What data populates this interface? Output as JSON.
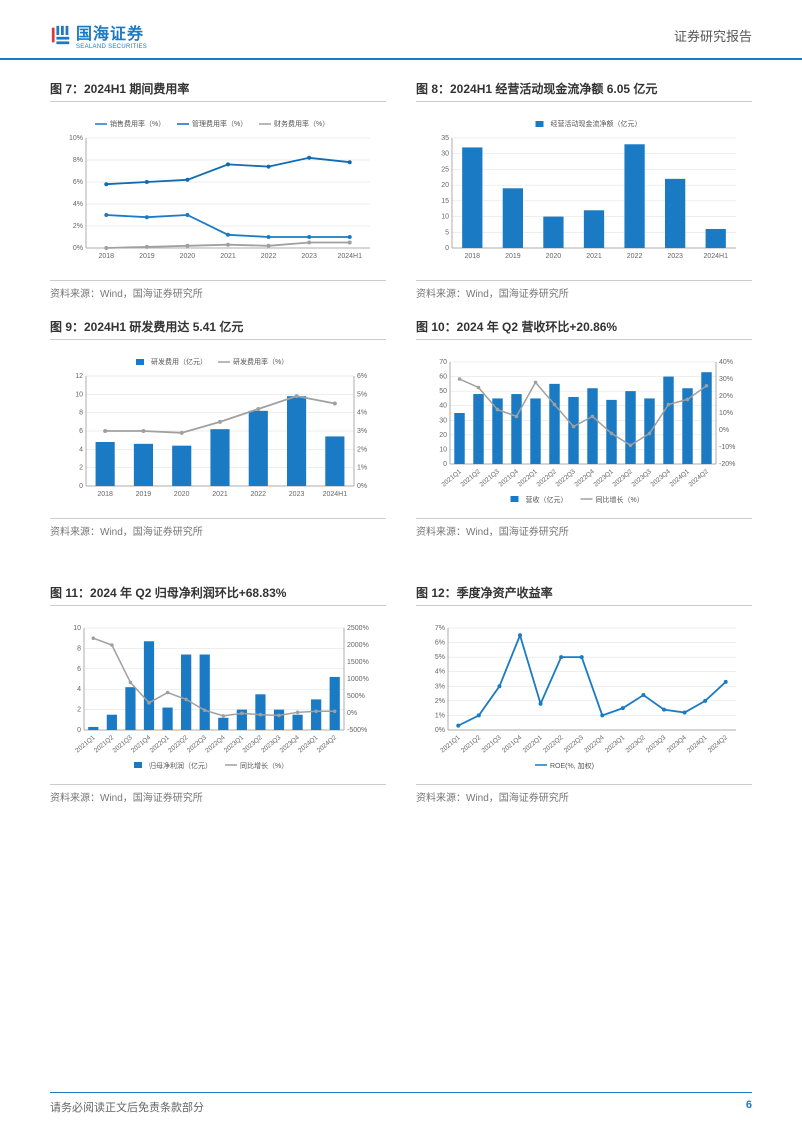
{
  "header": {
    "logo_cn": "国海证券",
    "logo_en": "SEALAND SECURITIES",
    "report_type": "证券研究报告"
  },
  "footer": {
    "disclaimer": "请务必阅读正文后免责条款部分",
    "page": "6"
  },
  "source_text": "资料来源：Wind，国海证券研究所",
  "colors": {
    "primary_blue": "#1a7bc4",
    "mid_blue": "#0d6cb5",
    "grey_line": "#a0a0a0",
    "grid": "#e0e0e0",
    "axis": "#999999",
    "text": "#666666",
    "bg": "#ffffff"
  },
  "chart7": {
    "title": "图 7：2024H1 期间费用率",
    "type": "line",
    "categories": [
      "2018",
      "2019",
      "2020",
      "2021",
      "2022",
      "2023",
      "2024H1"
    ],
    "series": [
      {
        "name": "销售费用率（%）",
        "color": "#1a7bc4",
        "values": [
          3.0,
          2.8,
          3.0,
          1.2,
          1.0,
          1.0,
          1.0
        ]
      },
      {
        "name": "管理费用率（%）",
        "color": "#0d6cb5",
        "values": [
          5.8,
          6.0,
          6.2,
          7.6,
          7.4,
          8.2,
          7.8
        ]
      },
      {
        "name": "财务费用率（%）",
        "color": "#a0a0a0",
        "values": [
          0.0,
          0.1,
          0.2,
          0.3,
          0.2,
          0.5,
          0.5
        ]
      }
    ],
    "ylim": [
      0,
      10
    ],
    "ytick_step": 2,
    "y_suffix": "%"
  },
  "chart8": {
    "title": "图 8：2024H1 经营活动现金流净额 6.05 亿元",
    "type": "bar",
    "legend": "经营活动现金流净额（亿元）",
    "categories": [
      "2018",
      "2019",
      "2020",
      "2021",
      "2022",
      "2023",
      "2024H1"
    ],
    "values": [
      32,
      19,
      10,
      12,
      33,
      22,
      6.05
    ],
    "bar_color": "#1a7bc4",
    "ylim": [
      0,
      35
    ],
    "ytick_step": 5
  },
  "chart9": {
    "title": "图 9：2024H1 研发费用达 5.41 亿元",
    "type": "bar-line",
    "categories": [
      "2018",
      "2019",
      "2020",
      "2021",
      "2022",
      "2023",
      "2024H1"
    ],
    "bar": {
      "name": "研发费用（亿元）",
      "color": "#1a7bc4",
      "values": [
        4.8,
        4.6,
        4.4,
        6.2,
        8.2,
        9.8,
        5.41
      ]
    },
    "line": {
      "name": "研发费用率（%）",
      "color": "#a0a0a0",
      "values": [
        3.0,
        3.0,
        2.9,
        3.5,
        4.2,
        4.9,
        4.5
      ]
    },
    "ylim_l": [
      0,
      12
    ],
    "ytick_l": 2,
    "ylim_r": [
      0,
      6
    ],
    "ytick_r": 1,
    "r_suffix": "%"
  },
  "chart10": {
    "title": "图 10：2024 年 Q2 营收环比+20.86%",
    "type": "bar-line",
    "categories": [
      "2021Q1",
      "2021Q2",
      "2021Q3",
      "2021Q4",
      "2022Q1",
      "2022Q2",
      "2022Q3",
      "2022Q4",
      "2023Q1",
      "2023Q2",
      "2023Q3",
      "2023Q4",
      "2024Q1",
      "2024Q2"
    ],
    "bar": {
      "name": "营收（亿元）",
      "color": "#1a7bc4",
      "values": [
        35,
        48,
        45,
        48,
        45,
        55,
        46,
        52,
        44,
        50,
        45,
        60,
        52,
        63
      ]
    },
    "line": {
      "name": "同比增长（%）",
      "color": "#a0a0a0",
      "values": [
        30,
        25,
        12,
        8,
        28,
        15,
        2,
        8,
        -2,
        -9,
        -2,
        15,
        18,
        26
      ]
    },
    "ylim_l": [
      0,
      70
    ],
    "ytick_l": 10,
    "ylim_r": [
      -20,
      40
    ],
    "ytick_r": 10,
    "r_suffix": "%"
  },
  "chart11": {
    "title": "图 11：2024 年 Q2 归母净利润环比+68.83%",
    "type": "bar-line",
    "categories": [
      "2021Q1",
      "2021Q2",
      "2021Q3",
      "2021Q4",
      "2022Q1",
      "2022Q2",
      "2022Q3",
      "2022Q4",
      "2023Q1",
      "2023Q2",
      "2023Q3",
      "2023Q4",
      "2024Q1",
      "2024Q2"
    ],
    "bar": {
      "name": "归母净利润（亿元）",
      "color": "#1a7bc4",
      "values": [
        0.3,
        1.5,
        4.2,
        8.7,
        2.2,
        7.4,
        7.4,
        1.2,
        2.0,
        3.5,
        2.0,
        1.5,
        3.0,
        5.2
      ]
    },
    "line": {
      "name": "同比增长（%）",
      "color": "#a0a0a0",
      "values": [
        2200,
        2000,
        900,
        300,
        600,
        400,
        80,
        -85,
        -10,
        -50,
        -70,
        20,
        50,
        50
      ]
    },
    "ylim_l": [
      0,
      10
    ],
    "ytick_l": 2,
    "ylim_r": [
      -500,
      2500
    ],
    "ytick_r": 500,
    "r_suffix": "%"
  },
  "chart12": {
    "title": "图 12：季度净资产收益率",
    "type": "line",
    "categories": [
      "2021Q1",
      "2021Q2",
      "2021Q3",
      "2021Q4",
      "2022Q1",
      "2022Q2",
      "2022Q3",
      "2022Q4",
      "2023Q1",
      "2023Q2",
      "2023Q3",
      "2023Q4",
      "2024Q1",
      "2024Q2"
    ],
    "series": [
      {
        "name": "ROE(%, 加权)",
        "color": "#1a7bc4",
        "values": [
          0.3,
          1.0,
          3.0,
          6.5,
          1.8,
          5.0,
          5.0,
          1.0,
          1.5,
          2.4,
          1.4,
          1.2,
          2.0,
          3.3
        ]
      }
    ],
    "ylim": [
      0,
      7
    ],
    "ytick_step": 1,
    "y_suffix": "%"
  }
}
